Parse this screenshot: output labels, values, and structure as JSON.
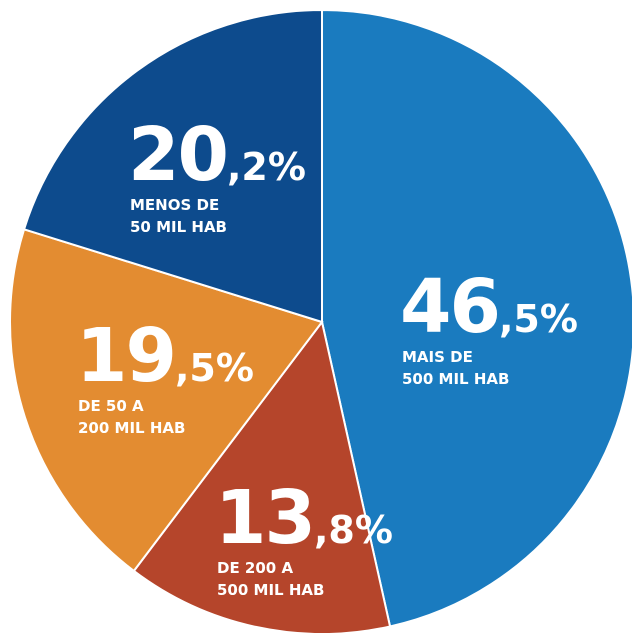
{
  "chart_data": {
    "type": "pie",
    "categories": [
      "MAIS DE\n500 MIL HAB",
      "DE 200 A\n500 MIL HAB",
      "DE 50 A\n200 MIL HAB",
      "MENOS DE\n50 MIL HAB"
    ],
    "values": [
      46.5,
      13.8,
      19.5,
      20.2
    ],
    "value_labels": [
      "46,5%",
      "13,8%",
      "19,5%",
      "20,2%"
    ],
    "colors": [
      "#1a7bbf",
      "#b5452b",
      "#e38c31",
      "#0d4b8d"
    ]
  }
}
